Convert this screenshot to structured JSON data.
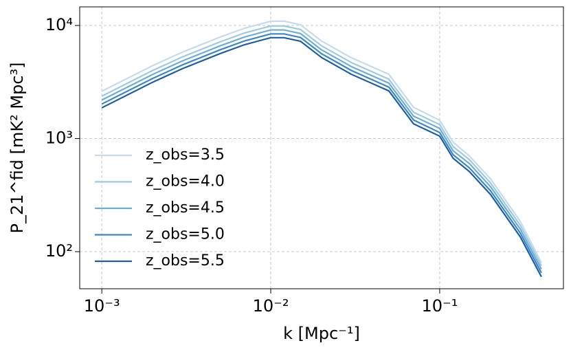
{
  "chart_data": {
    "type": "line",
    "xlabel": "k [Mpc⁻¹]",
    "ylabel": "P_21^fid [mK² Mpc³]",
    "x": [
      0.001,
      0.002,
      0.003,
      0.005,
      0.007,
      0.01,
      0.012,
      0.015,
      0.02,
      0.03,
      0.05,
      0.07,
      0.1,
      0.12,
      0.15,
      0.2,
      0.3,
      0.4
    ],
    "series": [
      {
        "name": "z_obs=3.5",
        "color": "#c6dbef",
        "values": [
          2620,
          4410,
          5810,
          7880,
          9460,
          10900,
          10920,
          10150,
          7280,
          5180,
          3700,
          1890,
          1450,
          930,
          700,
          440,
          185,
          80
        ]
      },
      {
        "name": "z_obs=4.0",
        "color": "#9ecae1",
        "values": [
          2370,
          4000,
          5270,
          7150,
          8590,
          9900,
          9900,
          9210,
          6600,
          4700,
          3350,
          1710,
          1330,
          850,
          650,
          405,
          171,
          75
        ]
      },
      {
        "name": "z_obs=4.5",
        "color": "#6baed6",
        "values": [
          2190,
          3690,
          4860,
          6590,
          7910,
          9130,
          9130,
          8480,
          6080,
          4330,
          3090,
          1580,
          1230,
          780,
          600,
          375,
          158,
          70
        ]
      },
      {
        "name": "z_obs=5.0",
        "color": "#3a87c4",
        "values": [
          2020,
          3400,
          4480,
          6080,
          7300,
          8420,
          8420,
          7830,
          5620,
          4000,
          2850,
          1460,
          1130,
          720,
          550,
          345,
          146,
          65
        ]
      },
      {
        "name": "z_obs=5.5",
        "color": "#1c5ea5",
        "values": [
          1870,
          3150,
          4150,
          5630,
          6760,
          7800,
          7800,
          7250,
          5200,
          3700,
          2640,
          1350,
          1050,
          670,
          510,
          320,
          135,
          60
        ]
      }
    ],
    "xscale": "log",
    "yscale": "log",
    "xlim": [
      0.00074,
      0.54
    ],
    "ylim": [
      47,
      14600
    ],
    "xticks": [
      {
        "value": 0.001,
        "label": "10⁻³"
      },
      {
        "value": 0.01,
        "label": "10⁻²"
      },
      {
        "value": 0.1,
        "label": "10⁻¹"
      }
    ],
    "yticks": [
      {
        "value": 100,
        "label": "10²"
      },
      {
        "value": 1000,
        "label": "10³"
      },
      {
        "value": 10000,
        "label": "10⁴"
      }
    ],
    "grid": true,
    "legend": "lower left"
  }
}
